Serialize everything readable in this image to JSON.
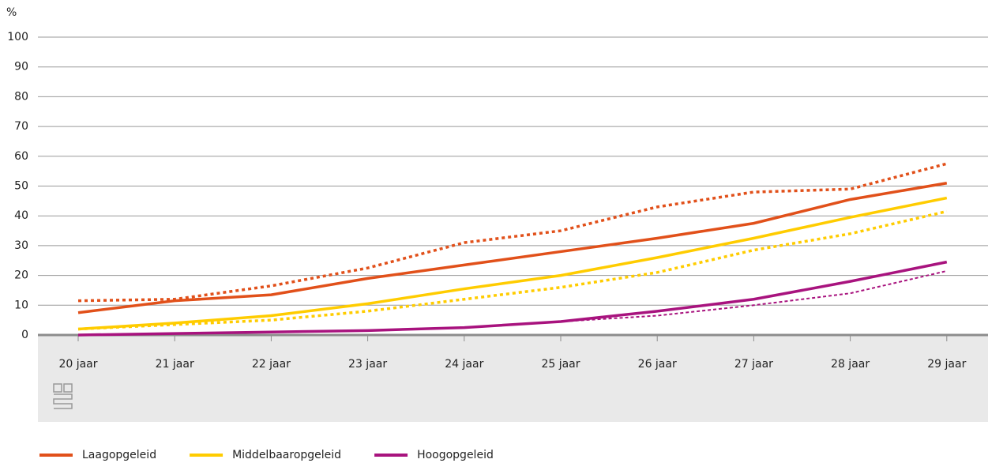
{
  "chart_data": {
    "type": "line",
    "ylabel": "%",
    "categories": [
      "20 jaar",
      "21 jaar",
      "22 jaar",
      "23 jaar",
      "24 jaar",
      "25 jaar",
      "26 jaar",
      "27 jaar",
      "28 jaar",
      "29 jaar"
    ],
    "series": [
      {
        "name": "Laagopgeleid",
        "color": "#e1501a",
        "style": "solid",
        "values": [
          7.5,
          11.5,
          13.5,
          19,
          23.5,
          28,
          32.5,
          37.5,
          45.5,
          51
        ]
      },
      {
        "name": "Middelbaaropgeleid",
        "color": "#ffcc00",
        "style": "solid",
        "values": [
          2,
          4,
          6.5,
          10.5,
          15.5,
          20,
          26,
          32.5,
          39.5,
          46
        ]
      },
      {
        "name": "Hoogopgeleid",
        "color": "#a8137e",
        "style": "solid",
        "values": [
          0,
          0.5,
          1,
          1.5,
          2.5,
          4.5,
          8,
          12,
          18,
          24.5
        ]
      },
      {
        "color": "#e1501a",
        "style": "dotted",
        "values": [
          11.5,
          12,
          16.5,
          22.5,
          31,
          35,
          43,
          48,
          49,
          57.5
        ]
      },
      {
        "color": "#ffcc00",
        "style": "dotted",
        "values": [
          2,
          3.5,
          5,
          8,
          12,
          16,
          21,
          28.5,
          34,
          41.5
        ]
      },
      {
        "color": "#a8137e",
        "style": "dotted-thin",
        "values": [
          0,
          0.5,
          1,
          1.5,
          2.5,
          4.5,
          6.5,
          10,
          14,
          21.5
        ]
      }
    ],
    "ylim": [
      0,
      100
    ],
    "yticks": [
      0,
      10,
      20,
      30,
      40,
      50,
      60,
      70,
      80,
      90,
      100
    ],
    "grid": true
  }
}
